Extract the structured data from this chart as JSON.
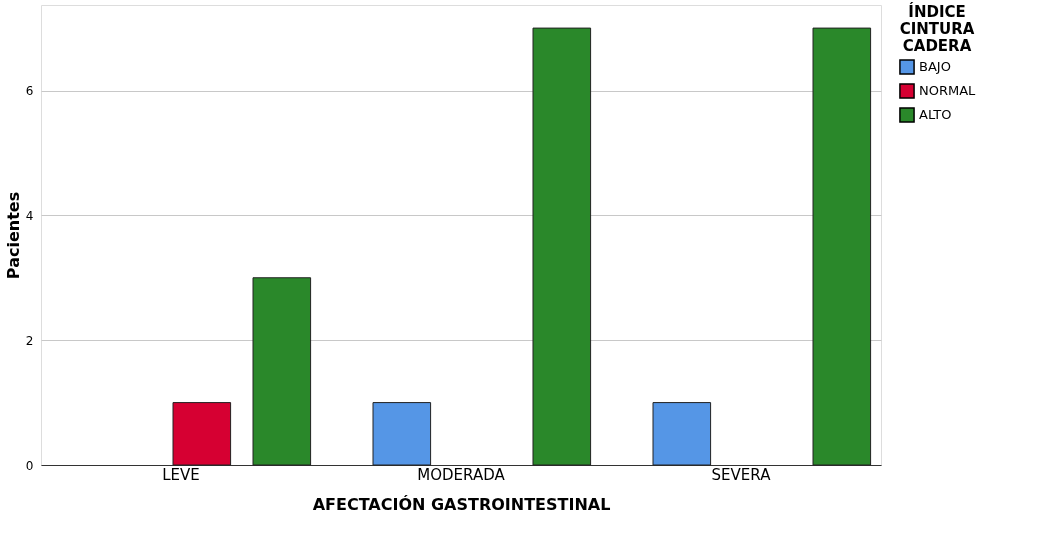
{
  "chart_data": {
    "type": "bar",
    "xlabel": "AFECTACIÓN GASTROINTESTINAL",
    "ylabel": "Pacientes",
    "legend_title": "ÍNDICE CINTURA CADERA",
    "categories": [
      "LEVE",
      "MODERADA",
      "SEVERA"
    ],
    "series": [
      {
        "name": "BAJO",
        "color": "#5596e6",
        "values": [
          null,
          1,
          1
        ]
      },
      {
        "name": "NORMAL",
        "color": "#d60032",
        "values": [
          1,
          null,
          null
        ]
      },
      {
        "name": "ALTO",
        "color": "#2a882a",
        "values": [
          3,
          7,
          7
        ]
      }
    ],
    "ylim": [
      0,
      7.37
    ],
    "yticks": [
      0,
      2,
      4,
      6
    ],
    "grid": "y",
    "legend": "top right"
  }
}
